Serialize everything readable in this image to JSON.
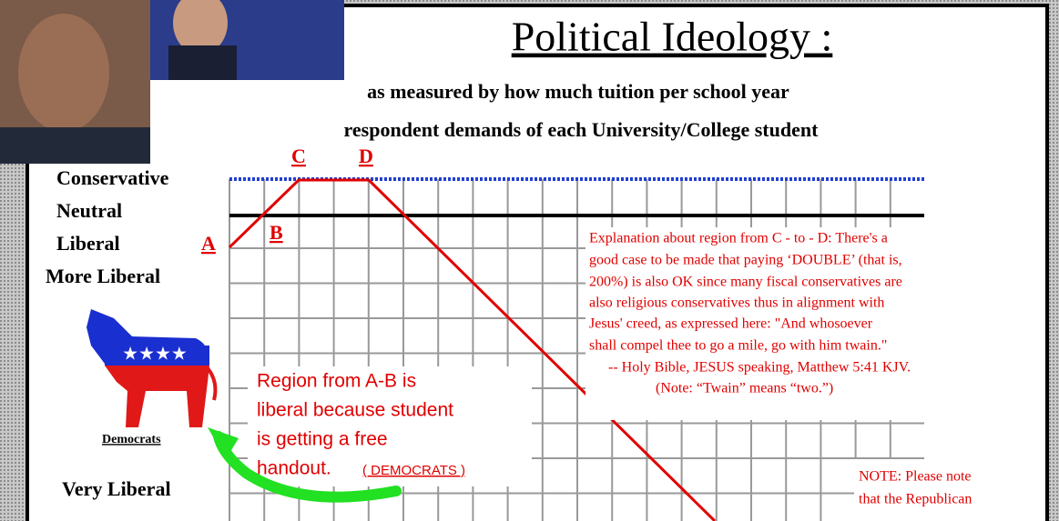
{
  "header": {
    "title": "Political Ideology :",
    "subtitle": [
      "as measured by how much tuition per school year",
      "respondent demands of each University/College student"
    ]
  },
  "axis_labels": [
    "Conservative",
    "Neutral",
    "Liberal",
    "More Liberal",
    "Very Liberal"
  ],
  "points": [
    "A",
    "B",
    "C",
    "D"
  ],
  "explanation": [
    "Explanation about region from C - to - D:  There's a",
    "good case to be made that paying ‘DOUBLE’ (that is,",
    "200%) is also OK since many fiscal conservatives are",
    "also religious conservatives thus in alignment with",
    "Jesus' creed, as expressed here: \"And whosoever",
    "shall compel thee to go a mile, go with him twain.\"",
    "-- Holy Bible, JESUS speaking, Matthew 5:41 KJV.",
    "(Note: “Twain” means “two.”)"
  ],
  "region_note": {
    "lines": [
      "Region from A-B is",
      "liberal because student",
      "is getting a free",
      "handout."
    ],
    "party": "( DEMOCRATS )"
  },
  "logo_label": "Democrats",
  "note": [
    "NOTE:  Please note",
    "that the Republican"
  ]
}
